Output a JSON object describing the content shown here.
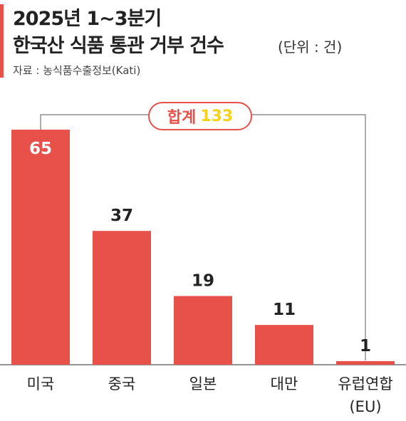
{
  "title": {
    "line1": "2025년 1~3분기",
    "line2": "한국산 식품 통관 거부 건수",
    "unit": "(단위 : 건)"
  },
  "source": "자료 : 농식품수출정보(Kati)",
  "total": {
    "label": "합계",
    "value": "133"
  },
  "colors": {
    "accent": "#e8504a",
    "bar": "#e8504a",
    "total_value": "#f7d21d",
    "text": "#222222"
  },
  "chart_data": {
    "type": "bar",
    "categories": [
      "미국",
      "중국",
      "일본",
      "대만",
      "유럽연합\n(EU)"
    ],
    "values": [
      65,
      37,
      19,
      11,
      1
    ],
    "ylim": [
      0,
      65
    ],
    "grid": false,
    "xlabel": "",
    "ylabel": ""
  }
}
